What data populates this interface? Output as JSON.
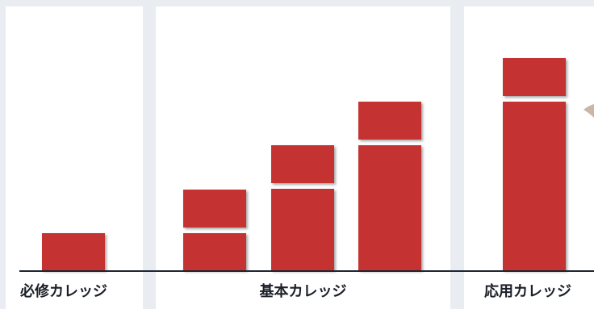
{
  "sections": [
    {
      "label": "必修カレッジ"
    },
    {
      "label": "基本カレッジ"
    },
    {
      "label": "応用カレッジ"
    }
  ],
  "colors": {
    "block": "#c43331",
    "background": "#e9edf1",
    "panel": "#ffffff",
    "baseline": "#1f2530"
  }
}
